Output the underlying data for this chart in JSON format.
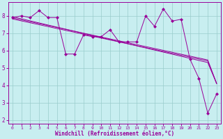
{
  "x": [
    0,
    1,
    2,
    3,
    4,
    5,
    6,
    7,
    8,
    9,
    10,
    11,
    12,
    13,
    14,
    15,
    16,
    17,
    18,
    19,
    20,
    21,
    22,
    23
  ],
  "y_main": [
    7.9,
    8.0,
    7.9,
    8.3,
    7.9,
    7.9,
    5.8,
    5.8,
    6.9,
    6.8,
    6.8,
    7.2,
    6.5,
    6.5,
    6.5,
    8.0,
    7.4,
    8.4,
    7.7,
    7.8,
    5.5,
    4.4,
    2.4,
    3.5
  ],
  "y_line1": [
    7.95,
    7.83,
    7.71,
    7.59,
    7.47,
    7.35,
    7.23,
    7.11,
    6.99,
    6.87,
    6.75,
    6.63,
    6.51,
    6.39,
    6.27,
    6.15,
    6.03,
    5.91,
    5.79,
    5.67,
    5.55,
    5.43,
    5.31,
    4.1
  ],
  "y_line2": [
    7.88,
    7.77,
    7.66,
    7.55,
    7.44,
    7.33,
    7.22,
    7.11,
    7.0,
    6.89,
    6.78,
    6.67,
    6.56,
    6.45,
    6.34,
    6.23,
    6.12,
    6.01,
    5.9,
    5.79,
    5.68,
    5.57,
    5.46,
    4.1
  ],
  "y_line3": [
    7.82,
    7.71,
    7.6,
    7.49,
    7.38,
    7.27,
    7.16,
    7.05,
    6.94,
    6.83,
    6.72,
    6.61,
    6.5,
    6.39,
    6.28,
    6.17,
    6.06,
    5.95,
    5.84,
    5.73,
    5.62,
    5.51,
    5.4,
    4.1
  ],
  "xlim": [
    -0.5,
    23.5
  ],
  "ylim": [
    1.8,
    8.8
  ],
  "yticks": [
    2,
    3,
    4,
    5,
    6,
    7,
    8
  ],
  "xticks": [
    0,
    1,
    2,
    3,
    4,
    5,
    6,
    7,
    8,
    9,
    10,
    11,
    12,
    13,
    14,
    15,
    16,
    17,
    18,
    19,
    20,
    21,
    22,
    23
  ],
  "xlabel": "Windchill (Refroidissement éolien,°C)",
  "line_color": "#990099",
  "bg_color": "#c8eef0",
  "grid_color": "#99cccc",
  "marker": "D",
  "markersize": 2.0,
  "linewidth": 0.7
}
